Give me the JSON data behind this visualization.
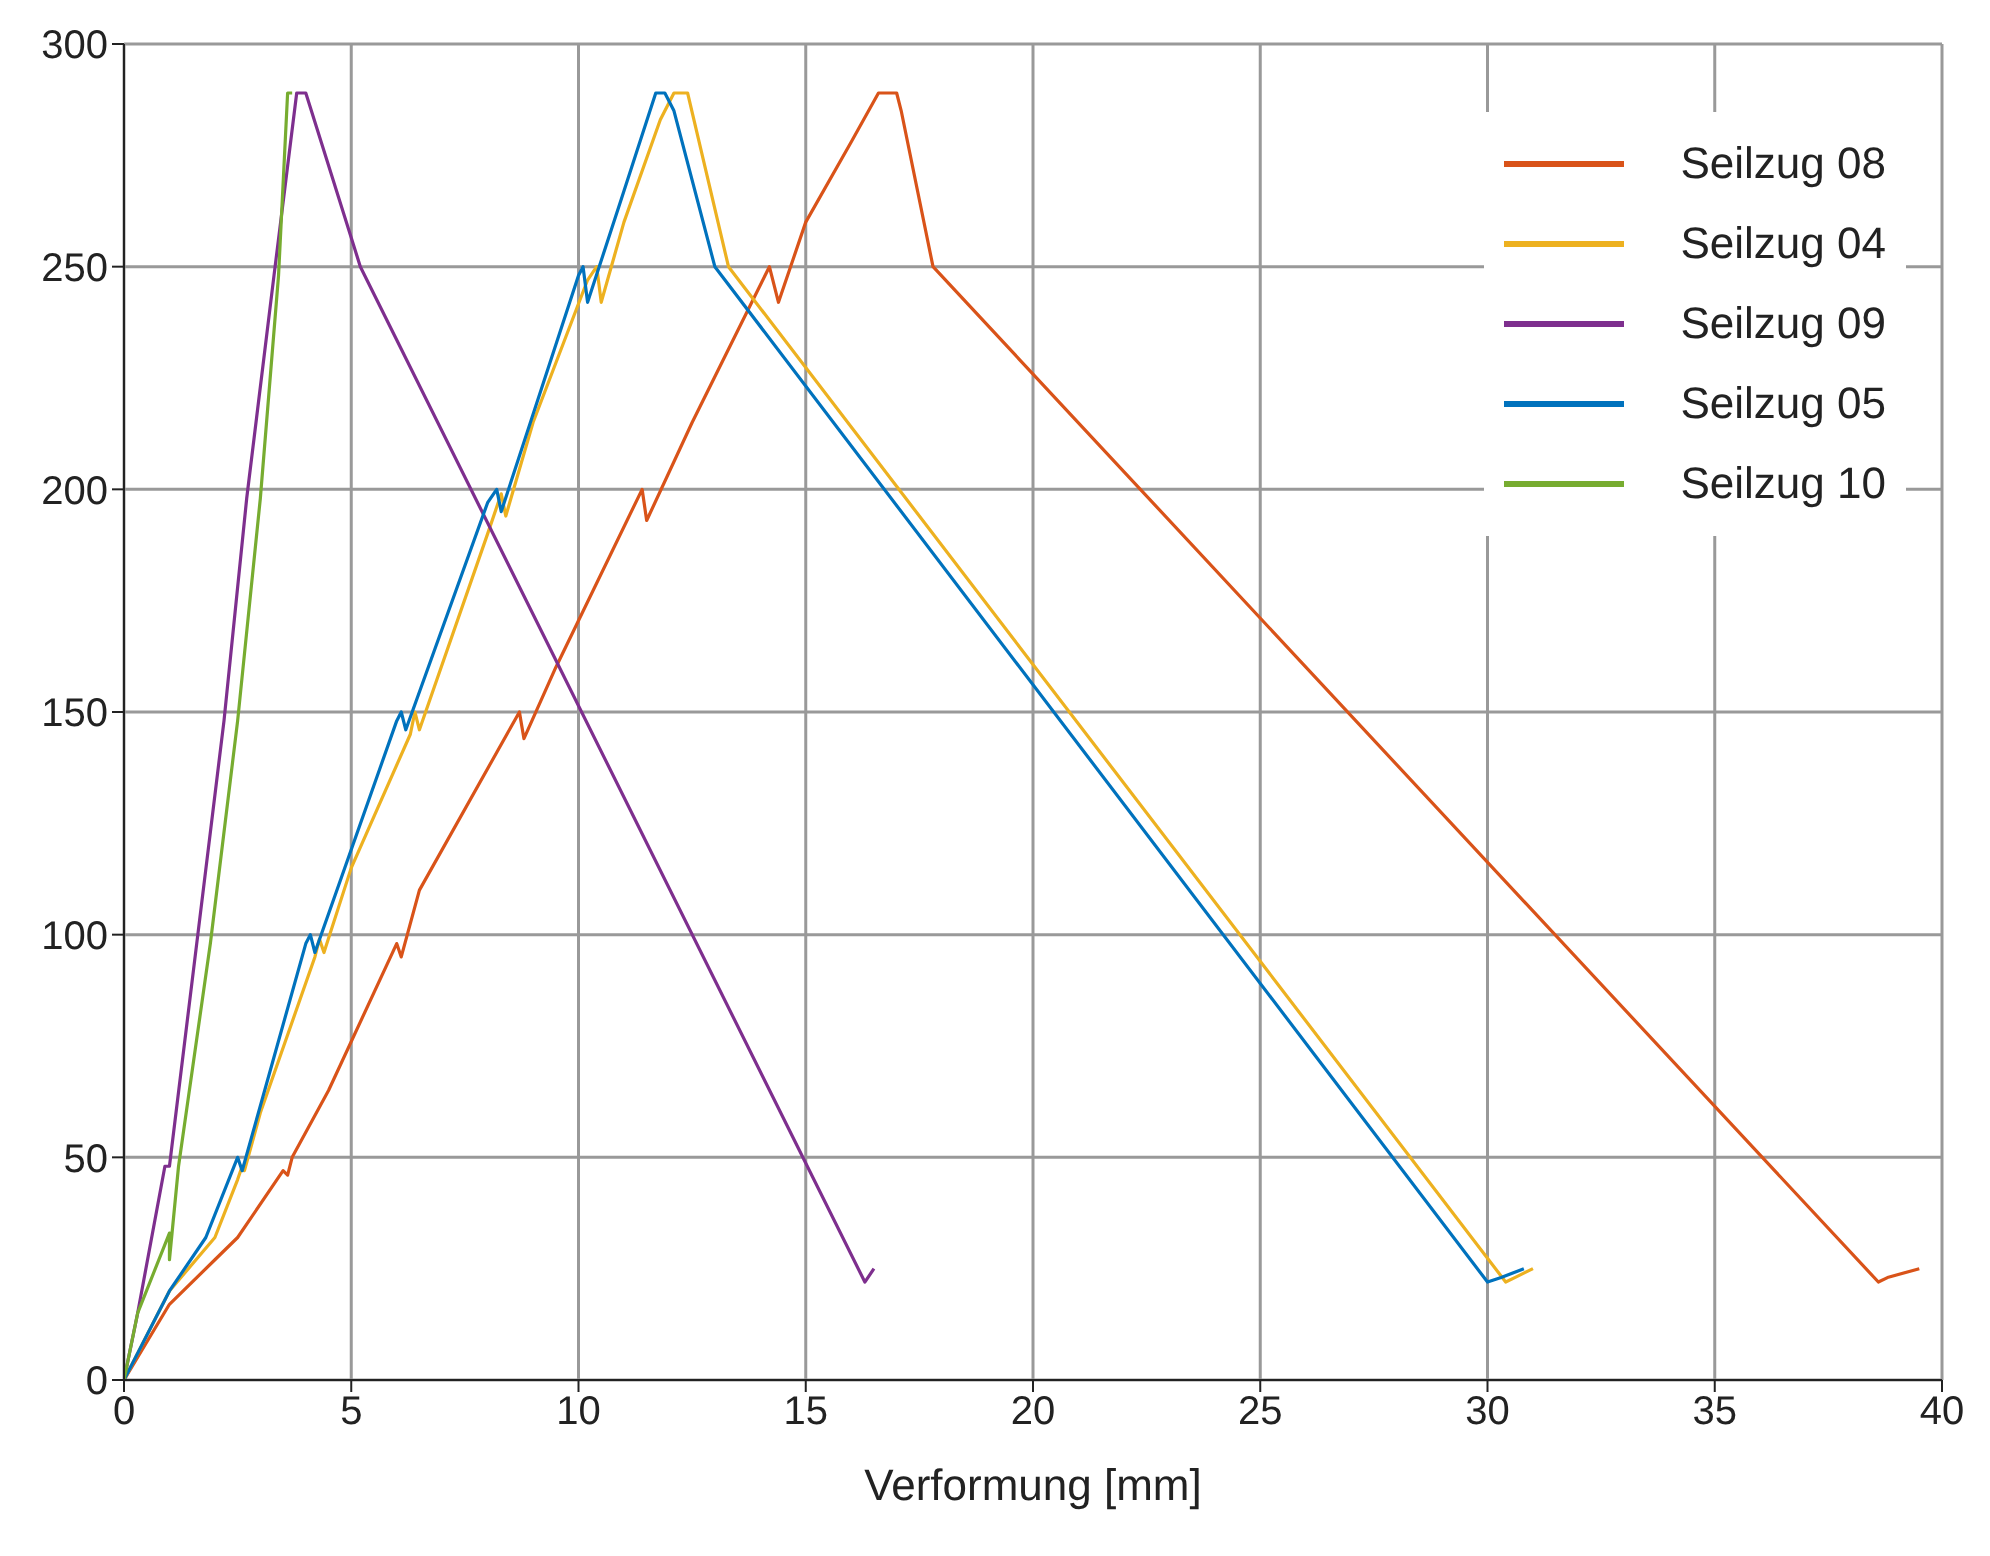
{
  "chart_data": {
    "type": "line",
    "xlabel": "Verformung [mm]",
    "xlim": [
      0,
      40
    ],
    "xticks": [
      0,
      5,
      10,
      15,
      20,
      25,
      30,
      35,
      40
    ],
    "ylim": [
      0,
      300
    ],
    "yticks": [
      0,
      50,
      100,
      150,
      200,
      250,
      300
    ],
    "grid": true,
    "legend": "top right",
    "series": [
      {
        "name": "Seilzug 08",
        "color": "#d95319",
        "x": [
          0,
          1,
          2,
          2.5,
          3.5,
          3.6,
          3.7,
          4.5,
          6,
          6.1,
          6.5,
          8.7,
          8.8,
          9.5,
          11.4,
          11.5,
          12.5,
          14.2,
          14.4,
          15,
          16,
          16.6,
          17,
          17.1,
          17.8,
          38.6,
          38.8,
          39.5
        ],
        "values": [
          0,
          17,
          27,
          32,
          47,
          46,
          50,
          65,
          98,
          95,
          110,
          150,
          144,
          160,
          200,
          193,
          215,
          250,
          242,
          260,
          278,
          289,
          289,
          285,
          250,
          22,
          23,
          25
        ]
      },
      {
        "name": "Seilzug 04",
        "color": "#edb120",
        "x": [
          0,
          1,
          2,
          2.5,
          2.6,
          2.65,
          3,
          4.2,
          4.3,
          4.4,
          5,
          6.3,
          6.4,
          6.5,
          8,
          8.3,
          8.4,
          9,
          10.2,
          10.4,
          10.5,
          11,
          11.8,
          12.1,
          12.4,
          13.3,
          30.4,
          30.6,
          31
        ],
        "values": [
          0,
          20,
          32,
          45,
          48,
          47,
          60,
          95,
          99,
          96,
          115,
          145,
          150,
          146,
          190,
          199,
          194,
          215,
          247,
          250,
          242,
          260,
          283,
          289,
          289,
          250,
          22,
          23,
          25
        ]
      },
      {
        "name": "Seilzug 09",
        "color": "#7e2f8e",
        "x": [
          0,
          0.3,
          0.9,
          1,
          1.6,
          2.2,
          2.7,
          3.3,
          3.8,
          4,
          5.2,
          16.3,
          16.5
        ],
        "values": [
          0,
          15,
          48,
          48,
          98,
          148,
          198,
          248,
          289,
          289,
          250,
          22,
          25
        ]
      },
      {
        "name": "Seilzug 05",
        "color": "#0072bd",
        "x": [
          0,
          1,
          1.8,
          2.5,
          2.6,
          4,
          4.1,
          4.2,
          6,
          6.1,
          6.2,
          8,
          8.2,
          8.3,
          10,
          10.1,
          10.2,
          11,
          11.7,
          11.9,
          12.1,
          13,
          30,
          30.3,
          30.8
        ],
        "values": [
          0,
          20,
          32,
          50,
          47,
          98,
          100,
          96,
          148,
          150,
          146,
          197,
          200,
          195,
          248,
          250,
          242,
          267,
          289,
          289,
          285,
          250,
          22,
          23,
          25
        ]
      },
      {
        "name": "Seilzug 10",
        "color": "#77ac30",
        "x": [
          0,
          0.3,
          1,
          1,
          1.2,
          1.9,
          2.5,
          3,
          3.4,
          3.6,
          3.7
        ],
        "values": [
          0,
          15,
          33,
          27,
          48,
          98,
          148,
          198,
          248,
          289,
          289
        ]
      }
    ]
  }
}
